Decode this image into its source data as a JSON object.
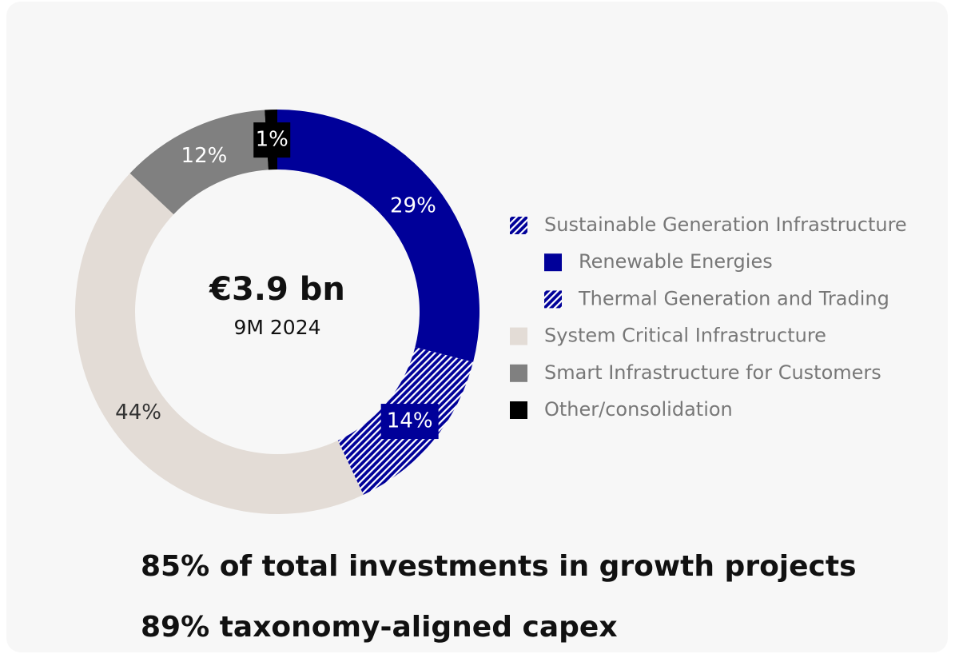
{
  "chart_data": {
    "type": "donut",
    "categories": [
      "Renewable Energies",
      "Thermal Generation and Trading",
      "System Critical Infrastructure",
      "Smart Infrastructure for Customers",
      "Other/consolidation"
    ],
    "values": [
      29,
      14,
      44,
      12,
      1
    ],
    "value_labels": [
      "29%",
      "14%",
      "44%",
      "12%",
      "1%"
    ],
    "colors": [
      "#000099",
      "#000099",
      "#e3dcd6",
      "#808080",
      "#000000"
    ],
    "hatched": [
      false,
      true,
      false,
      false,
      false
    ],
    "label_colors": [
      "#ffffff",
      "#ffffff",
      "#333333",
      "#ffffff",
      "#ffffff"
    ],
    "legend_group": {
      "name": "Sustainable Generation Infrastructure",
      "members": 2
    },
    "center_title": "€3.9 bn",
    "center_subtitle": "9M 2024"
  },
  "notes": [
    "85% of total investments in growth projects",
    "89% taxonomy-aligned capex"
  ]
}
